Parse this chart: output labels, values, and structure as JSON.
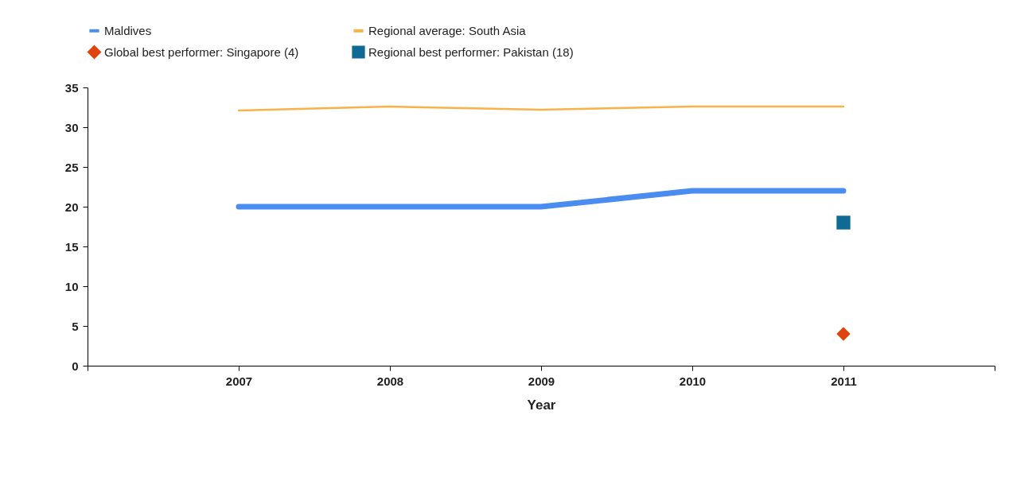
{
  "chart_data": {
    "type": "line",
    "xlabel": "Year",
    "x": [
      2007,
      2008,
      2009,
      2010,
      2011
    ],
    "xlim": [
      2006,
      2012
    ],
    "xticks": [
      {
        "value": 2006,
        "label": null
      },
      2007,
      2008,
      2009,
      2010,
      2011,
      {
        "value": 2012,
        "label": null
      }
    ],
    "ylim": [
      0,
      35
    ],
    "yticks": [
      0,
      5,
      10,
      15,
      20,
      25,
      30,
      35
    ],
    "grid": false,
    "legend": "top",
    "marker": "none",
    "series": [
      {
        "name": "Maldives",
        "color": "#4a8cf0",
        "values": [
          20,
          20,
          20,
          22,
          22
        ]
      },
      {
        "name": "Regional average: South Asia",
        "color": "#f9b248",
        "values": [
          32.1,
          32.6,
          32.2,
          32.6,
          32.6
        ]
      },
      {
        "name": "Global best performer: Singapore (4)",
        "type": "scatter",
        "marker": "diamond",
        "color": "#e0440e",
        "x": [
          2011
        ],
        "values": [
          4
        ]
      },
      {
        "name": "Regional best performer: Pakistan (18)",
        "type": "scatter",
        "marker": "square",
        "color": "#0f6a94",
        "x": [
          2011
        ],
        "values": [
          18
        ]
      }
    ]
  }
}
